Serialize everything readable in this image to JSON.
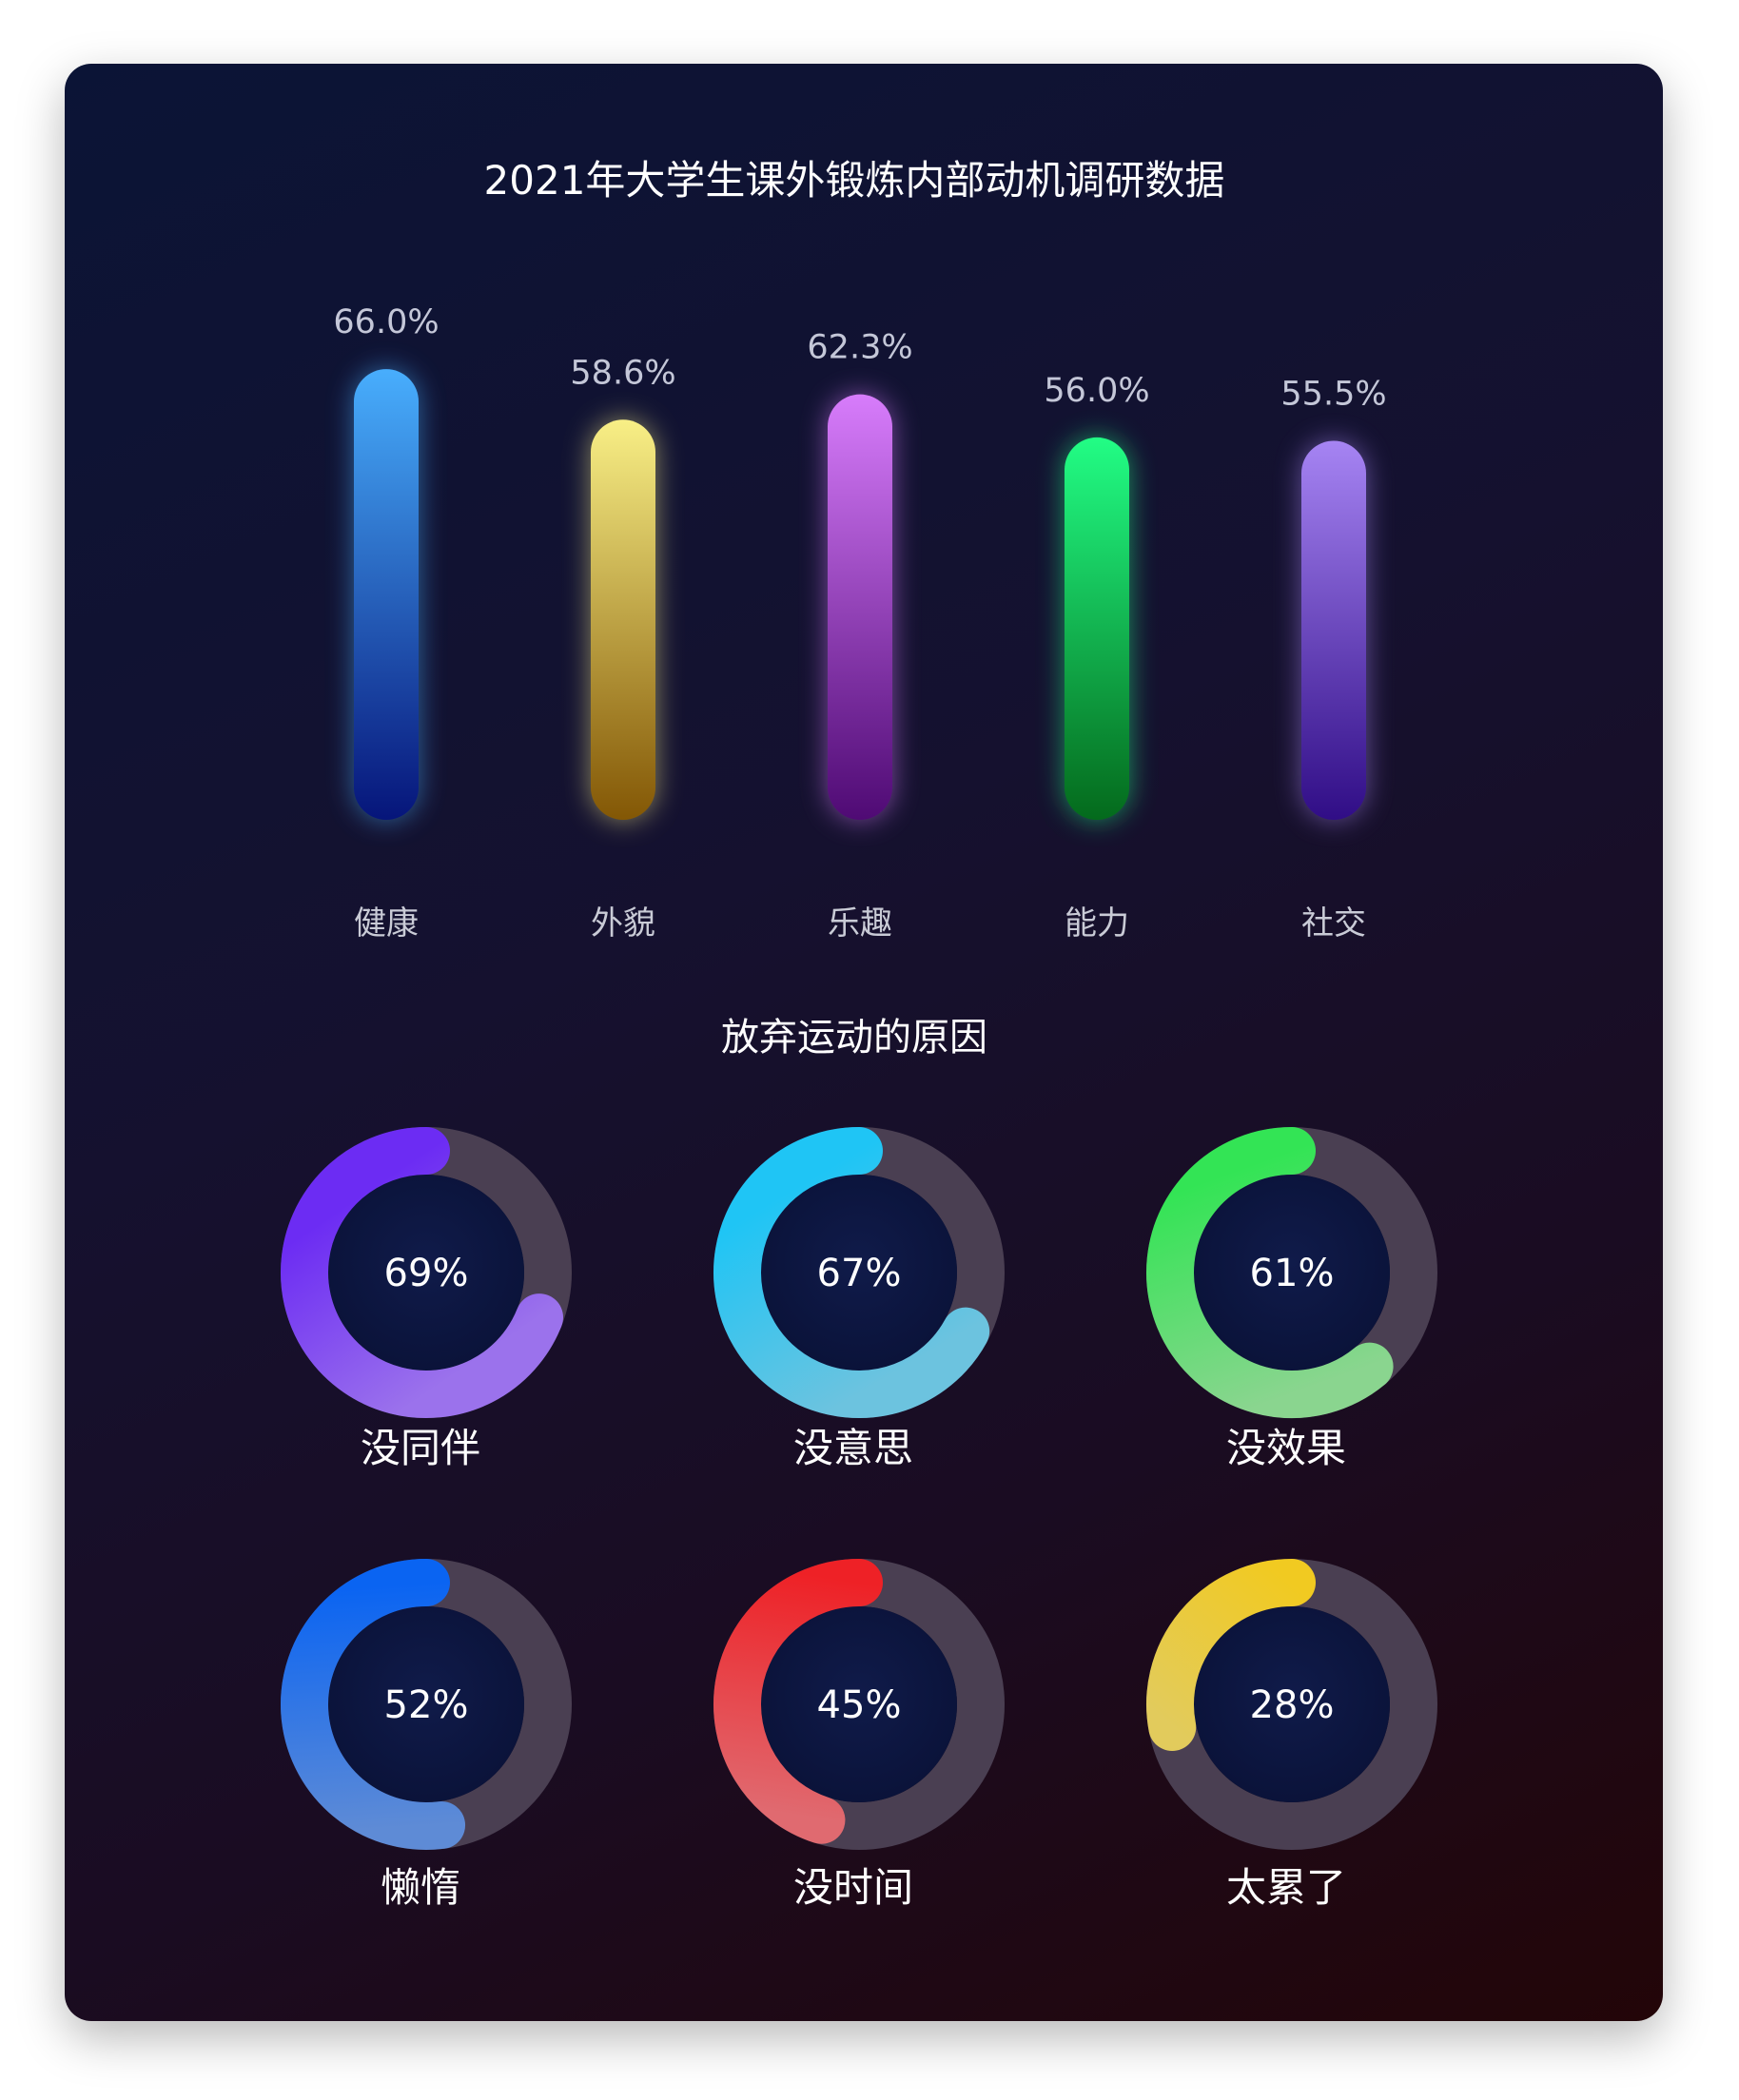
{
  "chart_data": [
    {
      "type": "bar",
      "title": "2021年大学生课外锻炼内部动机调研数据",
      "categories": [
        "健康",
        "外貌",
        "乐趣",
        "能力",
        "社交"
      ],
      "values": [
        66.0,
        58.6,
        62.3,
        56.0,
        55.5
      ],
      "value_labels": [
        "66.0%",
        "58.6%",
        "62.3%",
        "56.0%",
        "55.5%"
      ],
      "colors": [
        [
          "#48aefd",
          "#06157a"
        ],
        [
          "#f8ef86",
          "#835705"
        ],
        [
          "#d77cfb",
          "#4f0a74"
        ],
        [
          "#22fd85",
          "#046a1c"
        ],
        [
          "#a684f3",
          "#300d86"
        ]
      ],
      "grid": false
    },
    {
      "type": "pie",
      "title": "放弃运动的原因",
      "items": [
        {
          "label": "没同伴",
          "value": 69,
          "value_label": "69%",
          "color_start": "#6c2cf3",
          "color_end": "#9b72ec"
        },
        {
          "label": "没意思",
          "value": 67,
          "value_label": "67%",
          "color_start": "#1fc5f5",
          "color_end": "#6cc3df"
        },
        {
          "label": "没效果",
          "value": 61,
          "value_label": "61%",
          "color_start": "#33e455",
          "color_end": "#8ad58f"
        },
        {
          "label": "懒惰",
          "value": 52,
          "value_label": "52%",
          "color_start": "#0a64f2",
          "color_end": "#5e8bd6"
        },
        {
          "label": "没时间",
          "value": 45,
          "value_label": "45%",
          "color_start": "#ee2126",
          "color_end": "#e06a70"
        },
        {
          "label": "太累了",
          "value": 28,
          "value_label": "28%",
          "color_start": "#f1ca21",
          "color_end": "#e2cb5c"
        }
      ]
    }
  ]
}
